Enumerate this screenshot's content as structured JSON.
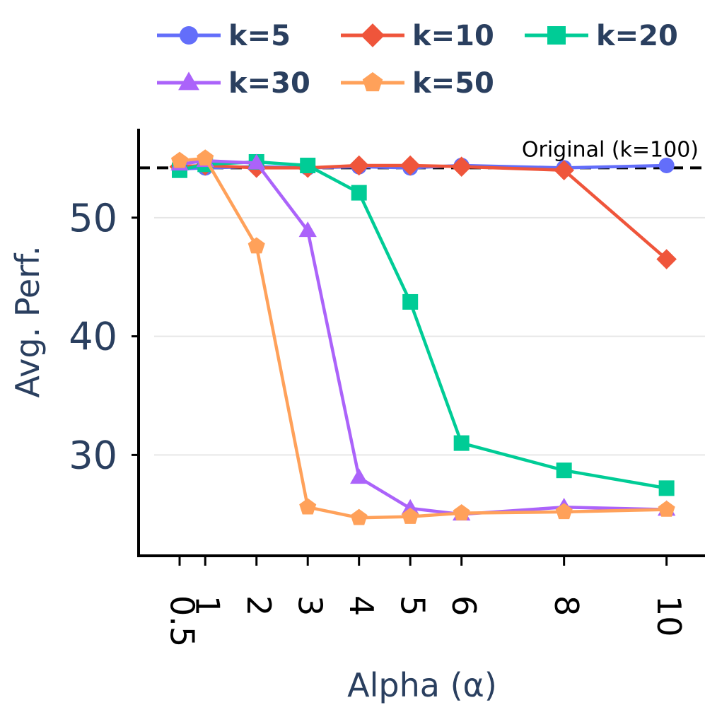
{
  "chart_data": {
    "type": "line",
    "title": "",
    "xlabel": "Alpha (α)",
    "ylabel": "Avg. Perf.",
    "x": [
      0.5,
      1,
      2,
      3,
      4,
      5,
      6,
      8,
      10
    ],
    "x_tick_labels": [
      "0.5",
      "1",
      "2",
      "3",
      "4",
      "5",
      "6",
      "8",
      "10"
    ],
    "y_ticks": [
      30,
      40,
      50
    ],
    "y_tick_labels": [
      "30",
      "40",
      "50"
    ],
    "xlim": [
      -0.3,
      10.75
    ],
    "ylim": [
      21.5,
      57.5
    ],
    "grid": true,
    "legend_position": "top",
    "reference_line": {
      "label": "Original (k=100)",
      "value": 54.2,
      "style": "dashed",
      "color": "#000000"
    },
    "series": [
      {
        "name": "k=5",
        "color": "#636efa",
        "marker": "circle",
        "values": [
          54.1,
          54.2,
          54.3,
          54.2,
          54.3,
          54.2,
          54.4,
          54.2,
          54.4
        ]
      },
      {
        "name": "k=10",
        "color": "#ef553b",
        "marker": "diamond",
        "values": [
          54.3,
          54.4,
          54.2,
          54.2,
          54.4,
          54.4,
          54.3,
          54.0,
          46.5
        ]
      },
      {
        "name": "k=20",
        "color": "#00cc96",
        "marker": "square",
        "values": [
          54.0,
          54.5,
          54.7,
          54.4,
          52.1,
          42.9,
          31.0,
          28.7,
          27.2
        ]
      },
      {
        "name": "k=30",
        "color": "#ab63fa",
        "marker": "triangle",
        "values": [
          54.5,
          54.8,
          54.6,
          48.9,
          28.1,
          25.5,
          25.0,
          25.6,
          25.4
        ]
      },
      {
        "name": "k=50",
        "color": "#ffa15a",
        "marker": "pentagon",
        "values": [
          54.8,
          55.0,
          47.6,
          25.6,
          24.7,
          24.8,
          25.1,
          25.2,
          25.4
        ]
      }
    ]
  }
}
